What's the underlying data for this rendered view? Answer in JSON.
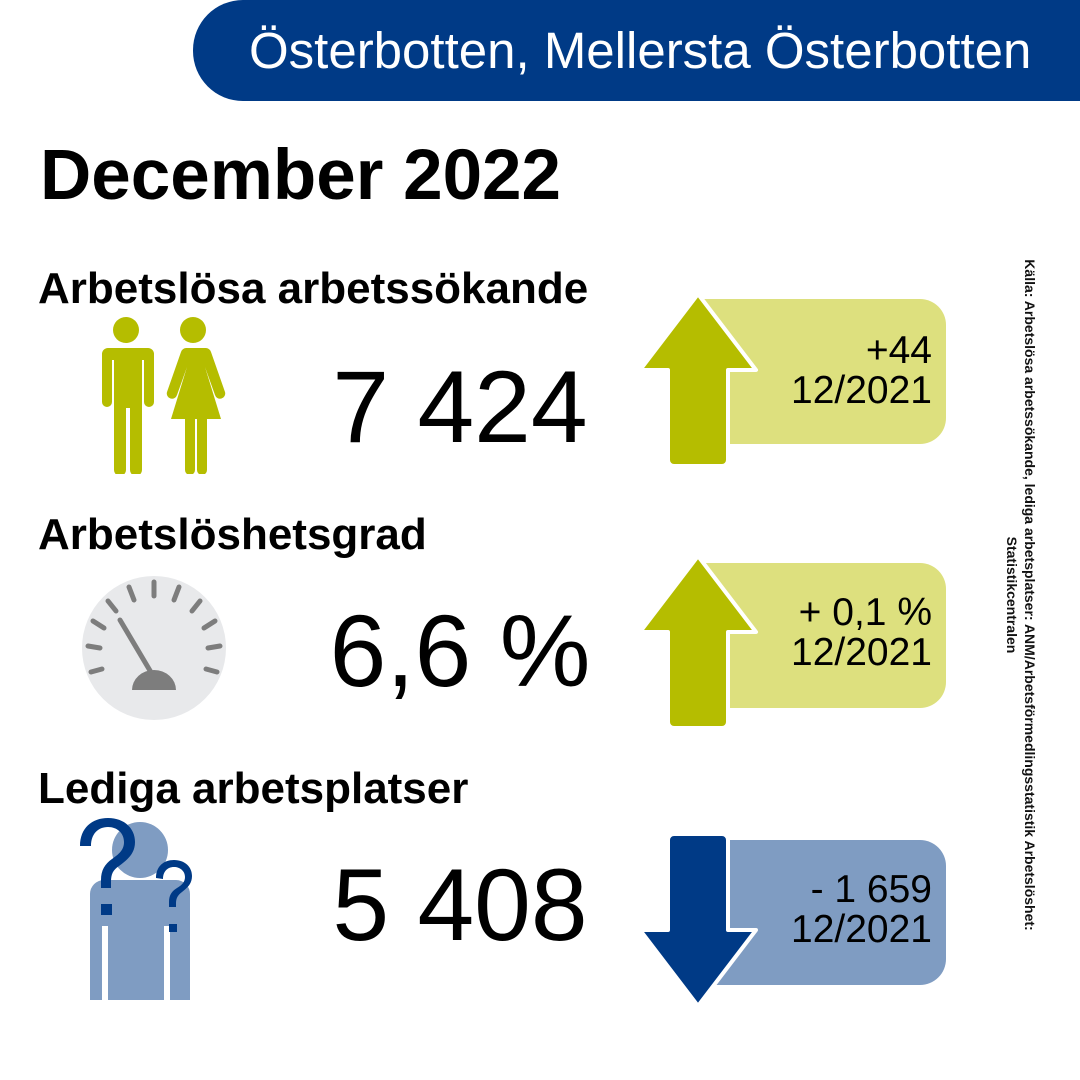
{
  "header": {
    "region": "Österbotten, Mellersta Österbotten",
    "period": "December 2022"
  },
  "colors": {
    "banner": "#003a86",
    "increase_arrow": "#b5bd00",
    "increase_box": "#dde07e",
    "decrease_arrow": "#003a86",
    "decrease_box": "#7f9cc2"
  },
  "indicators": [
    {
      "title": "Arbetslösa arbetssökande",
      "icon": "people-icon",
      "value": "7 424",
      "direction": "up",
      "change": "+44",
      "comparison": "12/2021"
    },
    {
      "title": "Arbetslöshetsgrad",
      "icon": "gauge-icon",
      "value": "6,6 %",
      "direction": "up",
      "change": "+ 0,1 %",
      "comparison": "12/2021"
    },
    {
      "title": "Lediga arbetsplatser",
      "icon": "question-person-icon",
      "value": "5 408",
      "direction": "down",
      "change": "- 1 659",
      "comparison": "12/2021"
    }
  ],
  "source": "Källa: Arbetslösa arbetssökande, lediga arbetsplatser: ANM/Arbetsförmedlingsstatistik Arbetslöshet: Statistikcentralen"
}
